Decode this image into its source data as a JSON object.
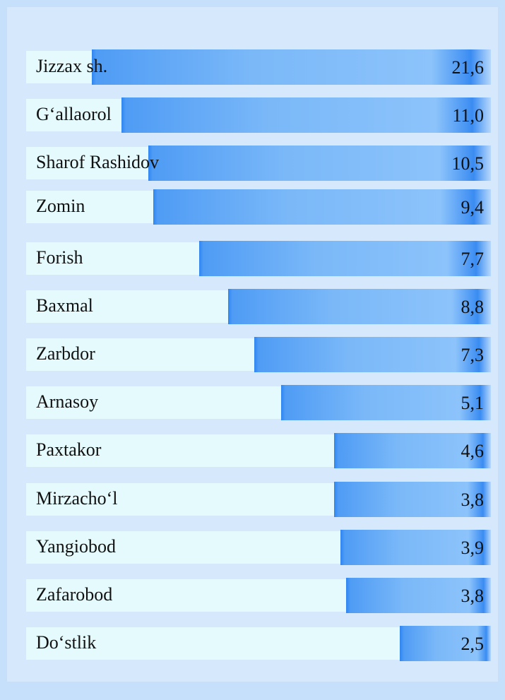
{
  "rows": [
    {
      "label": "Jizzax sh.",
      "value": "21,6"
    },
    {
      "label": "G‘allaorol",
      "value": "11,0"
    },
    {
      "label": "Sharof Rashidov",
      "value": "10,5"
    },
    {
      "label": "Zomin",
      "value": "9,4"
    },
    {
      "label": "Forish",
      "value": "7,7"
    },
    {
      "label": "Baxmal",
      "value": "8,8"
    },
    {
      "label": "Zarbdor",
      "value": "7,3"
    },
    {
      "label": "Arnasoy",
      "value": "5,1"
    },
    {
      "label": "Paxtakor",
      "value": "4,6"
    },
    {
      "label": "Mirzacho‘l",
      "value": "3,8"
    },
    {
      "label": "Yangiobod",
      "value": "3,9"
    },
    {
      "label": "Zafarobod",
      "value": "3,8"
    },
    {
      "label": "Do‘stlik",
      "value": "2,5"
    }
  ]
}
